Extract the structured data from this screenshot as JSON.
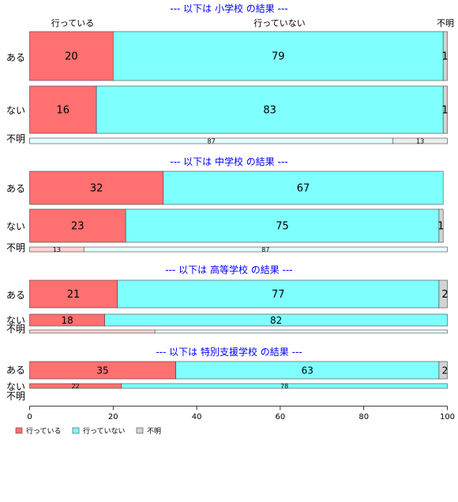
{
  "chart_data": {
    "type": "bar",
    "orientation": "horizontal-stacked-100",
    "xlim": [
      0,
      100
    ],
    "x_ticks": [
      0,
      20,
      40,
      60,
      80,
      100
    ],
    "header_labels": [
      "行っている",
      "行っていない",
      "不明"
    ],
    "legend": {
      "placement": "bottom-left",
      "entries": [
        {
          "label": "行っている",
          "color": "#ff7070"
        },
        {
          "label": "行っていない",
          "color": "#80ffff"
        },
        {
          "label": "不明",
          "color": "#d3d3d3"
        }
      ]
    },
    "series_colors": {
      "行っている": "#ff7070",
      "行っていない": "#80ffff",
      "不明": "#d3d3d3",
      "faded_行っている": "#ffd4d4",
      "faded_行っていない": "#e6ffff",
      "faded_不明": "#ececec"
    },
    "groups": [
      {
        "title": "--- 以下は 小学校 の結果 ---",
        "rows": [
          {
            "label": "ある",
            "values": [
              20,
              79,
              1
            ]
          },
          {
            "label": "ない",
            "values": [
              16,
              83,
              1
            ]
          },
          {
            "label": "不明",
            "values": [
              0,
              87,
              13
            ]
          }
        ]
      },
      {
        "title": "--- 以下は 中学校 の結果 ---",
        "rows": [
          {
            "label": "ある",
            "values": [
              32,
              67,
              0
            ]
          },
          {
            "label": "ない",
            "values": [
              23,
              75,
              1
            ]
          },
          {
            "label": "不明",
            "values": [
              13,
              87,
              0
            ]
          }
        ]
      },
      {
        "title": "--- 以下は 高等学校 の結果 ---",
        "rows": [
          {
            "label": "ある",
            "values": [
              21,
              77,
              2
            ]
          },
          {
            "label": "ない",
            "values": [
              18,
              82,
              0
            ]
          },
          {
            "label": "不明",
            "values": [
              30,
              70,
              0
            ]
          }
        ]
      },
      {
        "title": "--- 以下は 特別支援学校 の結果 ---",
        "rows": [
          {
            "label": "ある",
            "values": [
              35,
              63,
              2
            ]
          },
          {
            "label": "ない",
            "values": [
              22,
              78,
              0
            ]
          },
          {
            "label": "不明",
            "values": [
              0,
              0,
              0
            ]
          }
        ]
      }
    ]
  }
}
